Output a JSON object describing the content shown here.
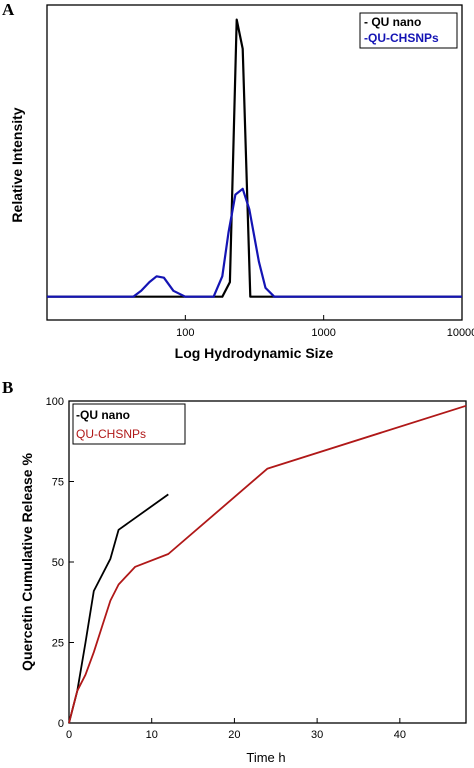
{
  "chart_data": [
    {
      "panel": "A",
      "type": "line",
      "xlabel": "Log Hydrodynamic Size",
      "ylabel": "Relative Intensity",
      "xscale": "log",
      "xlim": [
        10,
        10000
      ],
      "ylim": [
        -0.08,
        1.0
      ],
      "x_ticks": [
        100,
        1000,
        10000
      ],
      "x_tick_labels": [
        "100",
        "1000",
        "10000"
      ],
      "grid": false,
      "legend_position": "top-right",
      "series": [
        {
          "name": "- QU nano",
          "color": "#000000",
          "x": [
            10,
            185,
            210,
            235,
            260,
            295,
            10000
          ],
          "y": [
            0,
            0,
            0.05,
            0.95,
            0.85,
            0,
            0
          ]
        },
        {
          "name": "-QU-CHSNPs",
          "color": "#1414b4",
          "x": [
            10,
            42,
            48,
            55,
            62,
            70,
            82,
            100,
            160,
            185,
            205,
            230,
            260,
            290,
            340,
            380,
            440,
            10000
          ],
          "y": [
            0,
            0,
            0.02,
            0.05,
            0.07,
            0.065,
            0.02,
            0,
            0,
            0.07,
            0.22,
            0.35,
            0.37,
            0.3,
            0.12,
            0.03,
            0,
            0
          ]
        }
      ]
    },
    {
      "panel": "B",
      "type": "line",
      "xlabel": "Time h",
      "ylabel": "Quercetin Cumulative Release %",
      "xlim": [
        0,
        48
      ],
      "ylim": [
        0,
        100
      ],
      "x_ticks": [
        0,
        10,
        20,
        30,
        40
      ],
      "y_ticks": [
        0,
        25,
        50,
        75,
        100
      ],
      "grid": false,
      "legend_position": "top-left",
      "series": [
        {
          "name": "-QU nano",
          "color": "#000000",
          "x": [
            0,
            1,
            2,
            3,
            5,
            6,
            12
          ],
          "y": [
            0,
            10,
            25,
            41,
            51,
            60,
            71
          ]
        },
        {
          "name": "QU-CHSNPs",
          "color": "#b01818",
          "x": [
            0,
            0.5,
            1,
            2,
            3,
            4,
            5,
            6,
            8,
            12,
            24,
            48
          ],
          "y": [
            0,
            5,
            10,
            15,
            22,
            30,
            38,
            43,
            48.5,
            52.5,
            79,
            98.5
          ]
        }
      ]
    }
  ]
}
